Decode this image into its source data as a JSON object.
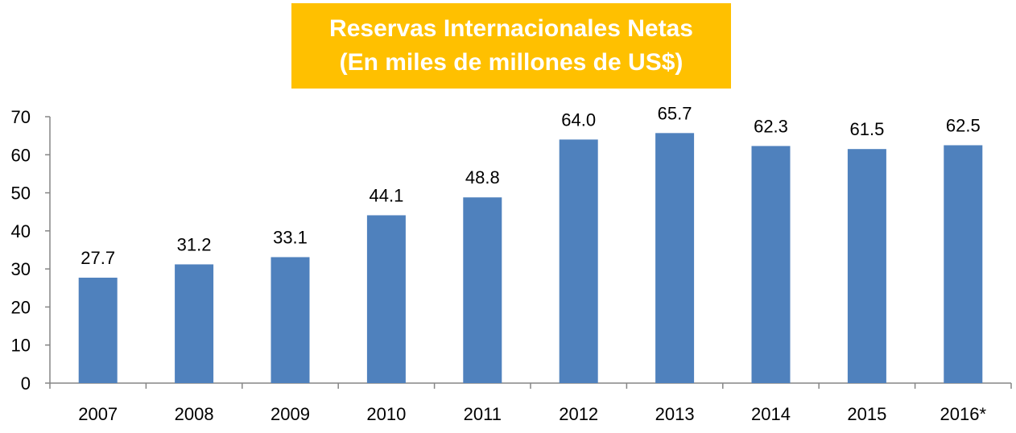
{
  "chart_data": {
    "type": "bar",
    "title": "Reservas Internacionales Netas",
    "subtitle": "(En miles de millones de US$)",
    "categories": [
      "2007",
      "2008",
      "2009",
      "2010",
      "2011",
      "2012",
      "2013",
      "2014",
      "2015",
      "2016*"
    ],
    "values": [
      27.7,
      31.2,
      33.1,
      44.1,
      48.8,
      64.0,
      65.7,
      62.3,
      61.5,
      62.5
    ],
    "value_labels": [
      "27.7",
      "31.2",
      "33.1",
      "44.1",
      "48.8",
      "64.0",
      "65.7",
      "62.3",
      "61.5",
      "62.5"
    ],
    "y_ticks": [
      "0",
      "10",
      "20",
      "30",
      "40",
      "50",
      "60",
      "70"
    ],
    "ylim": [
      0,
      70
    ],
    "xlabel": "",
    "ylabel": "",
    "grid": false,
    "legend": "none",
    "colors": {
      "bar": "#4F81BD",
      "title_background": "#FFC000",
      "title_text": "#FFFFFF",
      "axis": "#868686"
    }
  }
}
